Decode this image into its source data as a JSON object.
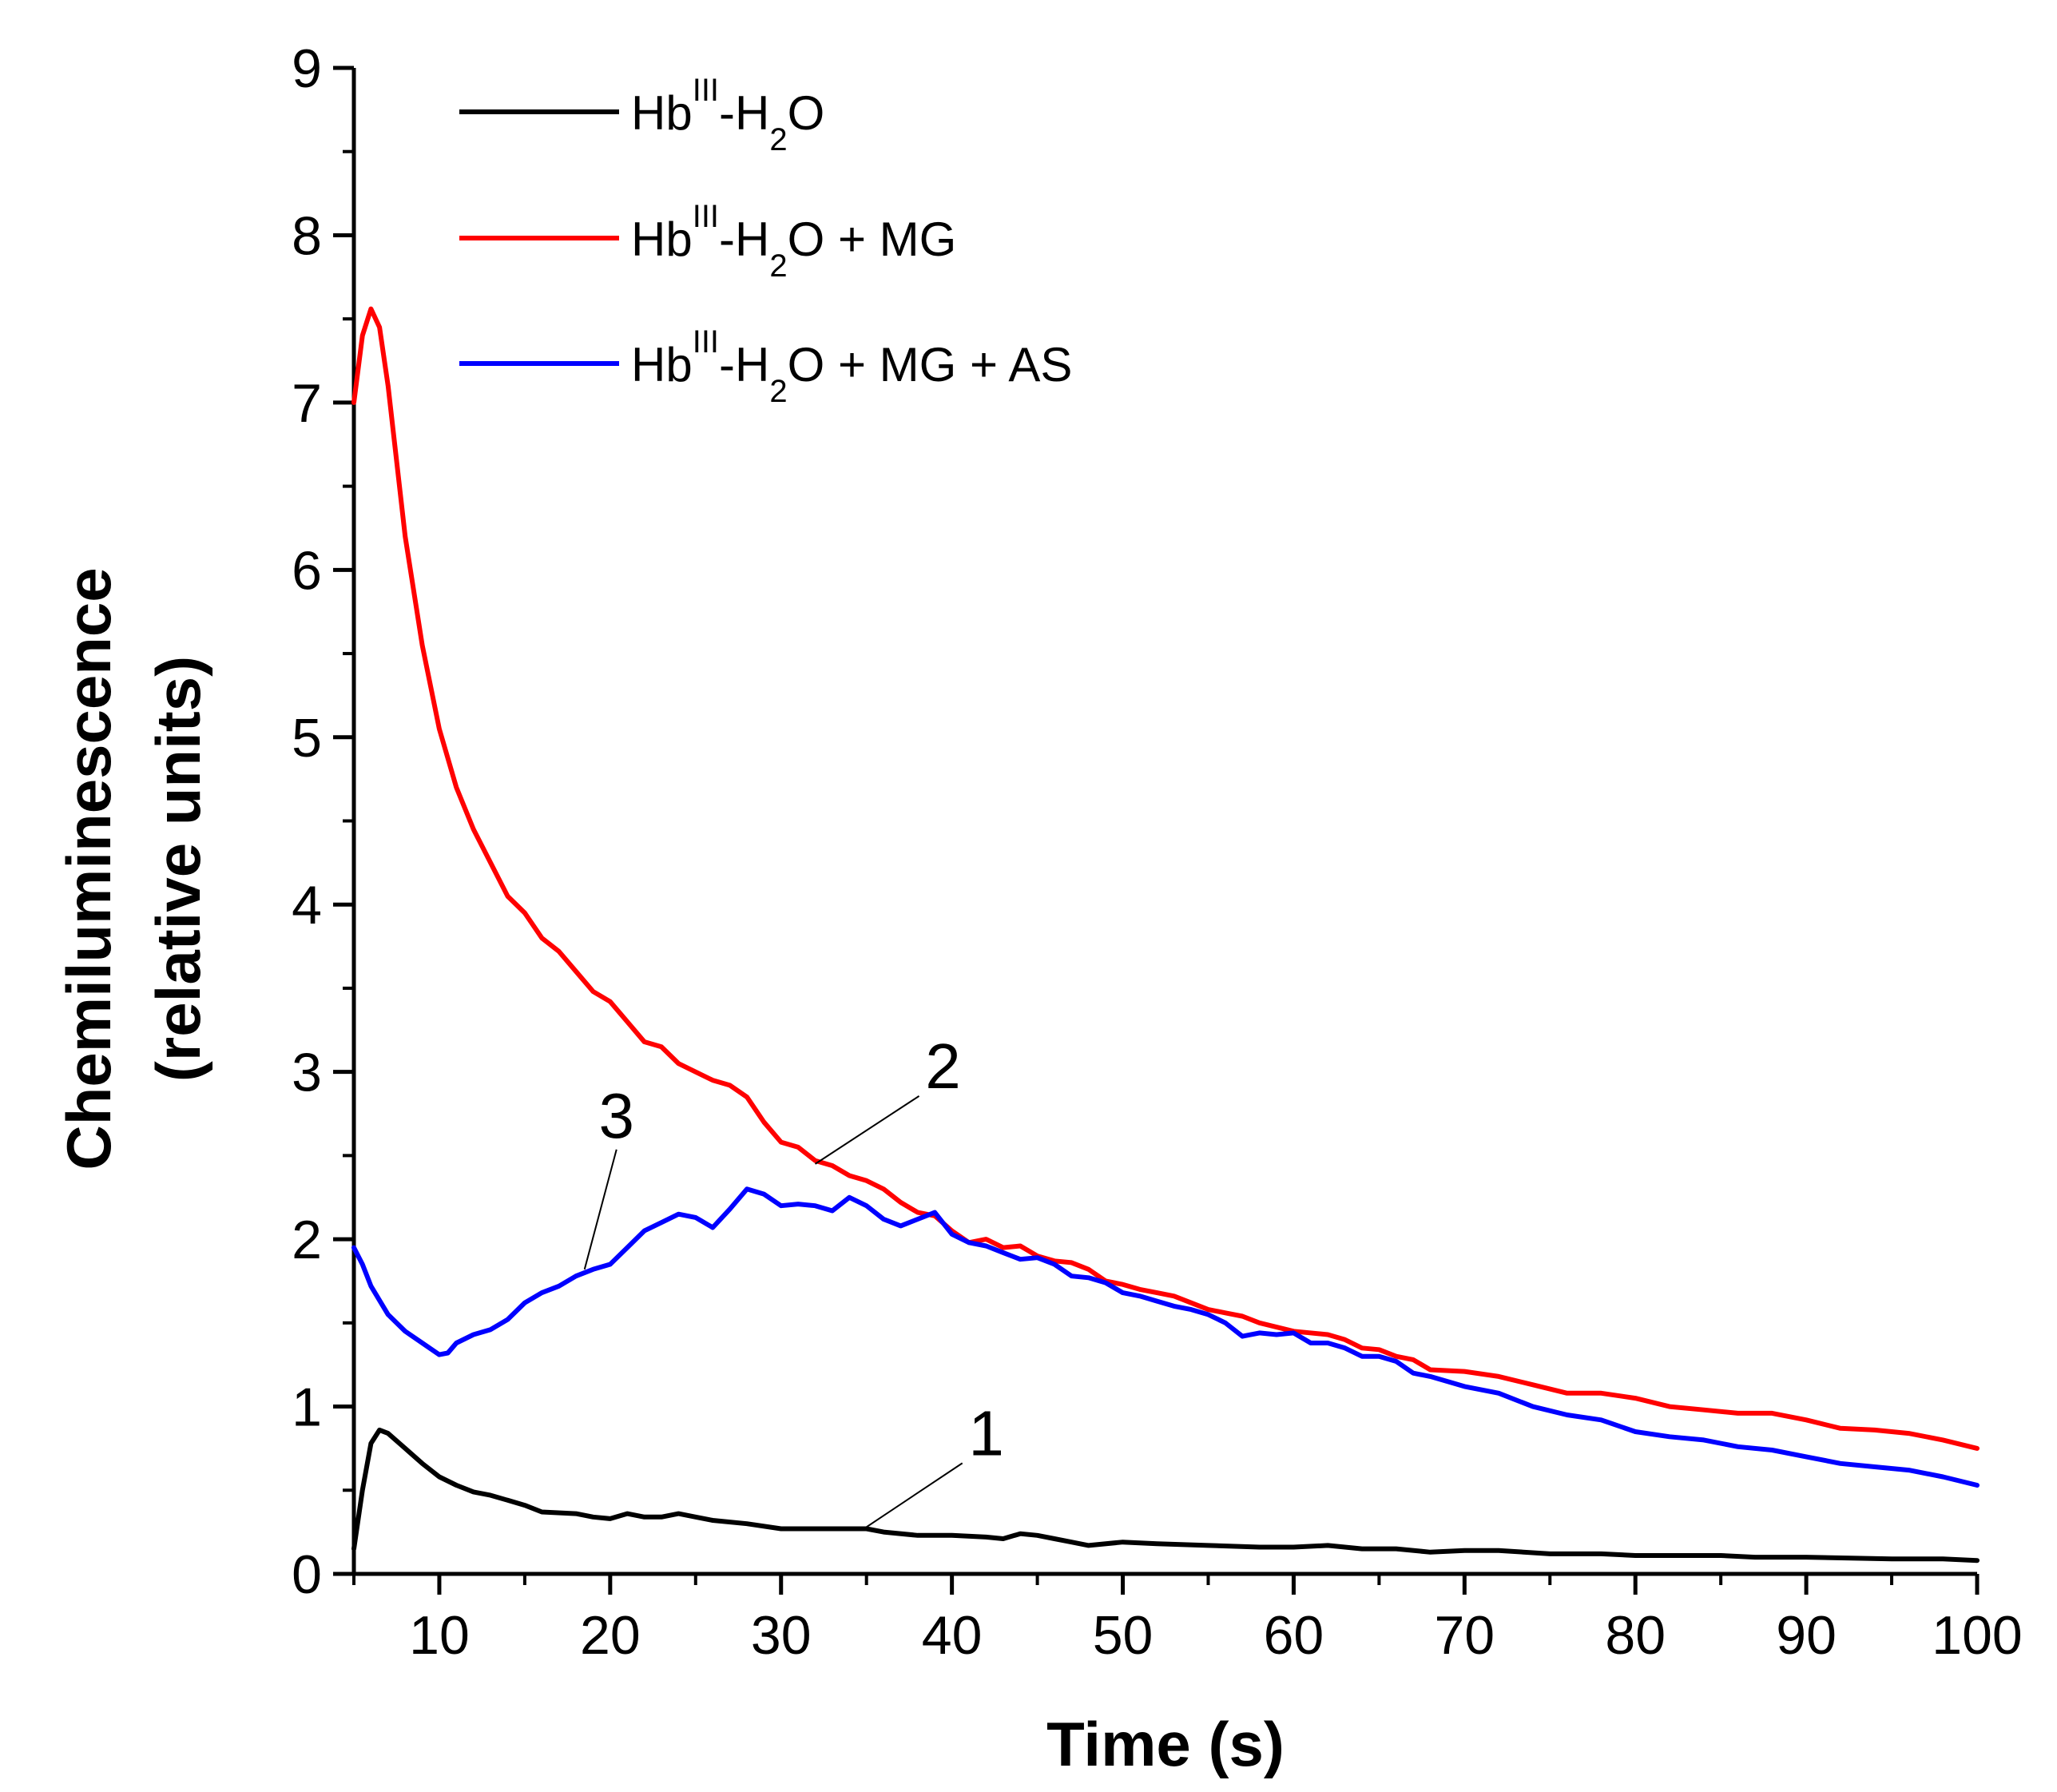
{
  "chart_data": {
    "type": "line",
    "xlabel": "Time (s)",
    "ylabel_line1": "Chemiluminescence",
    "ylabel_line2": "(relative units)",
    "xlim": [
      5,
      100
    ],
    "ylim": [
      0,
      9
    ],
    "xticks": [
      10,
      20,
      30,
      40,
      50,
      60,
      70,
      80,
      90,
      100
    ],
    "yticks": [
      0,
      1,
      2,
      3,
      4,
      5,
      6,
      7,
      8,
      9
    ],
    "xminor": 5,
    "yminor": 0.5,
    "series": [
      {
        "name": "Hb-III-H2O",
        "legend": {
          "base": "Hb",
          "sup": "III",
          "mid": "-H",
          "sub": "2",
          "tail": "O"
        },
        "color": "#000000",
        "callout": "1",
        "callout_at": [
          35,
          0.28
        ],
        "points": [
          [
            5,
            0.15
          ],
          [
            5.5,
            0.5
          ],
          [
            6,
            0.78
          ],
          [
            6.5,
            0.86
          ],
          [
            7,
            0.84
          ],
          [
            8,
            0.75
          ],
          [
            9,
            0.66
          ],
          [
            10,
            0.58
          ],
          [
            11,
            0.53
          ],
          [
            12,
            0.49
          ],
          [
            13,
            0.47
          ],
          [
            14,
            0.44
          ],
          [
            15,
            0.41
          ],
          [
            16,
            0.37
          ],
          [
            18,
            0.36
          ],
          [
            19,
            0.34
          ],
          [
            20,
            0.33
          ],
          [
            21,
            0.36
          ],
          [
            22,
            0.34
          ],
          [
            23,
            0.34
          ],
          [
            24,
            0.36
          ],
          [
            25,
            0.34
          ],
          [
            26,
            0.32
          ],
          [
            28,
            0.3
          ],
          [
            30,
            0.27
          ],
          [
            32,
            0.27
          ],
          [
            34,
            0.27
          ],
          [
            35,
            0.27
          ],
          [
            36,
            0.25
          ],
          [
            38,
            0.23
          ],
          [
            40,
            0.23
          ],
          [
            42,
            0.22
          ],
          [
            43,
            0.21
          ],
          [
            44,
            0.24
          ],
          [
            45,
            0.23
          ],
          [
            46,
            0.21
          ],
          [
            47,
            0.19
          ],
          [
            48,
            0.17
          ],
          [
            50,
            0.19
          ],
          [
            52,
            0.18
          ],
          [
            55,
            0.17
          ],
          [
            58,
            0.16
          ],
          [
            60,
            0.16
          ],
          [
            62,
            0.17
          ],
          [
            64,
            0.15
          ],
          [
            66,
            0.15
          ],
          [
            68,
            0.13
          ],
          [
            70,
            0.14
          ],
          [
            72,
            0.14
          ],
          [
            75,
            0.12
          ],
          [
            78,
            0.12
          ],
          [
            80,
            0.11
          ],
          [
            82,
            0.11
          ],
          [
            85,
            0.11
          ],
          [
            87,
            0.1
          ],
          [
            90,
            0.1
          ],
          [
            95,
            0.09
          ],
          [
            98,
            0.09
          ],
          [
            100,
            0.08
          ]
        ]
      },
      {
        "name": "Hb-III-H2O + MG",
        "legend": {
          "base": "Hb",
          "sup": "III",
          "mid": "-H",
          "sub": "2",
          "tail": "O + MG"
        },
        "color": "#ff0000",
        "callout": "2",
        "callout_at": [
          32,
          2.45
        ],
        "points": [
          [
            5,
            7.0
          ],
          [
            5.5,
            7.4
          ],
          [
            6,
            7.56
          ],
          [
            6.5,
            7.45
          ],
          [
            7,
            7.1
          ],
          [
            8,
            6.2
          ],
          [
            9,
            5.55
          ],
          [
            10,
            5.05
          ],
          [
            11,
            4.7
          ],
          [
            12,
            4.45
          ],
          [
            13,
            4.25
          ],
          [
            14,
            4.05
          ],
          [
            15,
            3.95
          ],
          [
            16,
            3.8
          ],
          [
            17,
            3.72
          ],
          [
            18,
            3.6
          ],
          [
            19,
            3.48
          ],
          [
            20,
            3.42
          ],
          [
            21,
            3.3
          ],
          [
            22,
            3.18
          ],
          [
            23,
            3.15
          ],
          [
            24,
            3.05
          ],
          [
            25,
            3.0
          ],
          [
            26,
            2.95
          ],
          [
            27,
            2.92
          ],
          [
            28,
            2.85
          ],
          [
            29,
            2.7
          ],
          [
            30,
            2.58
          ],
          [
            31,
            2.55
          ],
          [
            32,
            2.47
          ],
          [
            33,
            2.44
          ],
          [
            34,
            2.38
          ],
          [
            35,
            2.35
          ],
          [
            36,
            2.3
          ],
          [
            37,
            2.22
          ],
          [
            38,
            2.16
          ],
          [
            39,
            2.14
          ],
          [
            40,
            2.05
          ],
          [
            41,
            1.98
          ],
          [
            42,
            2.0
          ],
          [
            43,
            1.95
          ],
          [
            44,
            1.96
          ],
          [
            45,
            1.9
          ],
          [
            46,
            1.87
          ],
          [
            47,
            1.86
          ],
          [
            48,
            1.82
          ],
          [
            49,
            1.75
          ],
          [
            50,
            1.73
          ],
          [
            51,
            1.7
          ],
          [
            52,
            1.68
          ],
          [
            53,
            1.66
          ],
          [
            54,
            1.62
          ],
          [
            55,
            1.58
          ],
          [
            56,
            1.56
          ],
          [
            57,
            1.54
          ],
          [
            58,
            1.5
          ],
          [
            60,
            1.45
          ],
          [
            62,
            1.43
          ],
          [
            63,
            1.4
          ],
          [
            64,
            1.35
          ],
          [
            65,
            1.34
          ],
          [
            66,
            1.3
          ],
          [
            67,
            1.28
          ],
          [
            68,
            1.22
          ],
          [
            70,
            1.21
          ],
          [
            72,
            1.18
          ],
          [
            74,
            1.13
          ],
          [
            76,
            1.08
          ],
          [
            78,
            1.08
          ],
          [
            80,
            1.05
          ],
          [
            82,
            1.0
          ],
          [
            84,
            0.98
          ],
          [
            86,
            0.96
          ],
          [
            88,
            0.96
          ],
          [
            90,
            0.92
          ],
          [
            92,
            0.87
          ],
          [
            94,
            0.86
          ],
          [
            96,
            0.84
          ],
          [
            98,
            0.8
          ],
          [
            100,
            0.75
          ]
        ]
      },
      {
        "name": "Hb-III-H2O + MG + AS",
        "legend": {
          "base": "Hb",
          "sup": "III",
          "mid": "-H",
          "sub": "2",
          "tail": "O + MG  + AS"
        },
        "color": "#0000ff",
        "callout": "3",
        "callout_at": [
          18.5,
          1.82
        ],
        "points": [
          [
            5,
            1.95
          ],
          [
            5.5,
            1.85
          ],
          [
            6,
            1.72
          ],
          [
            7,
            1.55
          ],
          [
            8,
            1.45
          ],
          [
            9,
            1.38
          ],
          [
            10,
            1.31
          ],
          [
            10.5,
            1.32
          ],
          [
            11,
            1.38
          ],
          [
            12,
            1.43
          ],
          [
            13,
            1.46
          ],
          [
            14,
            1.52
          ],
          [
            15,
            1.62
          ],
          [
            16,
            1.68
          ],
          [
            17,
            1.72
          ],
          [
            18,
            1.78
          ],
          [
            19,
            1.82
          ],
          [
            20,
            1.85
          ],
          [
            21,
            1.95
          ],
          [
            22,
            2.05
          ],
          [
            23,
            2.1
          ],
          [
            24,
            2.15
          ],
          [
            25,
            2.13
          ],
          [
            26,
            2.07
          ],
          [
            27,
            2.18
          ],
          [
            28,
            2.3
          ],
          [
            29,
            2.27
          ],
          [
            30,
            2.2
          ],
          [
            31,
            2.21
          ],
          [
            32,
            2.2
          ],
          [
            33,
            2.17
          ],
          [
            34,
            2.25
          ],
          [
            35,
            2.2
          ],
          [
            36,
            2.12
          ],
          [
            37,
            2.08
          ],
          [
            38,
            2.12
          ],
          [
            39,
            2.16
          ],
          [
            40,
            2.03
          ],
          [
            41,
            1.98
          ],
          [
            42,
            1.96
          ],
          [
            43,
            1.92
          ],
          [
            44,
            1.88
          ],
          [
            45,
            1.89
          ],
          [
            46,
            1.85
          ],
          [
            47,
            1.78
          ],
          [
            48,
            1.77
          ],
          [
            49,
            1.74
          ],
          [
            50,
            1.68
          ],
          [
            51,
            1.66
          ],
          [
            52,
            1.63
          ],
          [
            53,
            1.6
          ],
          [
            54,
            1.58
          ],
          [
            55,
            1.55
          ],
          [
            56,
            1.5
          ],
          [
            57,
            1.42
          ],
          [
            58,
            1.44
          ],
          [
            59,
            1.43
          ],
          [
            60,
            1.44
          ],
          [
            61,
            1.38
          ],
          [
            62,
            1.38
          ],
          [
            63,
            1.35
          ],
          [
            64,
            1.3
          ],
          [
            65,
            1.3
          ],
          [
            66,
            1.27
          ],
          [
            67,
            1.2
          ],
          [
            68,
            1.18
          ],
          [
            69,
            1.15
          ],
          [
            70,
            1.12
          ],
          [
            72,
            1.08
          ],
          [
            74,
            1.0
          ],
          [
            76,
            0.95
          ],
          [
            78,
            0.92
          ],
          [
            80,
            0.85
          ],
          [
            82,
            0.82
          ],
          [
            84,
            0.8
          ],
          [
            86,
            0.76
          ],
          [
            88,
            0.74
          ],
          [
            90,
            0.7
          ],
          [
            92,
            0.66
          ],
          [
            94,
            0.64
          ],
          [
            96,
            0.62
          ],
          [
            98,
            0.58
          ],
          [
            100,
            0.53
          ]
        ]
      }
    ]
  }
}
